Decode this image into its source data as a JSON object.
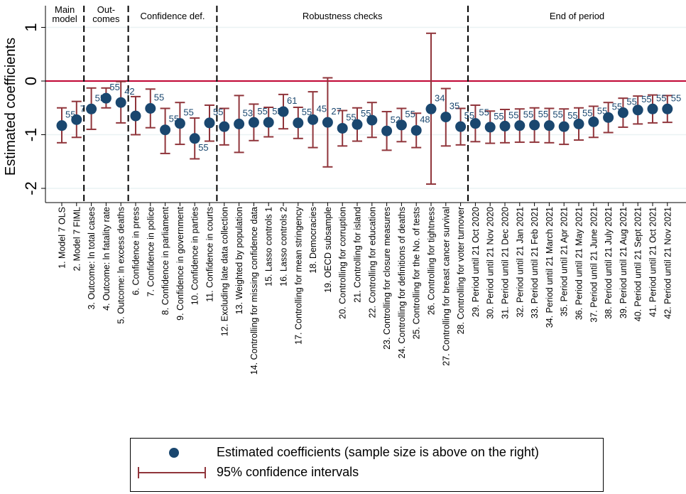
{
  "colors": {
    "point": "#1a476f",
    "ci": "#90353b",
    "zero_line": "#c10534",
    "grid": "#eaf2f3",
    "label": "#1a476f"
  },
  "chart_data": {
    "type": "scatter",
    "ylabel": "Estimated coefficients",
    "ylim": [
      -2.3,
      1.3
    ],
    "yticks": [
      1,
      0,
      -1,
      -2
    ],
    "grid": true,
    "reference_line": 0,
    "sections": [
      {
        "title": "Main\nmodel",
        "start": 1,
        "end": 2
      },
      {
        "title": "Out-\ncomes",
        "start": 3,
        "end": 5
      },
      {
        "title": "Confidence def.",
        "start": 6,
        "end": 11
      },
      {
        "title": "Robustness checks",
        "start": 12,
        "end": 28
      },
      {
        "title": "End of period",
        "start": 29,
        "end": 42
      }
    ],
    "categories": [
      "1. Model 7 OLS",
      "2. Model 7 FIML",
      "3. Outcome: ln total cases",
      "4. Outcome: ln fatality rate",
      "5. Outcome: ln excess deaths",
      "6. Confidence in press",
      "7. Confidence in police",
      "8. Confidence in parliament",
      "9. Confidence in government",
      "10. Confidence in parties",
      "11. Confidence in courts",
      "12. Excluding late data collection",
      "13. Weighted by population",
      "14. Controlling for missing confidence data",
      "15. Lasso controls 1",
      "16. Lasso controls 2",
      "17. Controlling for mean stringency",
      "18. Democracies",
      "19. OECD subsample",
      "20. Controlling for corruption",
      "21. Controlling for island",
      "22. Controlling for education",
      "23. Controlling for closure measures",
      "24. Controlling for definitions of deaths",
      "25. Controlling for the No. of tests",
      "26. Controlling for tightness",
      "27. Controlling for breast cancer survival",
      "28. Controlling for voter turnover",
      "29. Period until 21 Oct 2020",
      "30. Period until 21 Nov 2020",
      "31. Period until 21 Dec 2020",
      "32. Period until 21 Jan 2021",
      "33. Period until 21 Feb 2021",
      "34. Period until 21 March 2021",
      "35. Period until 21 Apr 2021",
      "36. Period until 21 May 2021",
      "37. Period until 21 June 2021",
      "38. Period until 21 July 2021",
      "39. Period until 21 Aug 2021",
      "40. Period until 21 Sept 2021",
      "41. Period until 21 Oct 2021",
      "42. Period until 21 Nov 2021"
    ],
    "estimates": [
      -0.83,
      -0.72,
      -0.52,
      -0.32,
      -0.4,
      -0.65,
      -0.51,
      -0.91,
      -0.79,
      -1.07,
      -0.78,
      -0.85,
      -0.8,
      -0.77,
      -0.77,
      -0.57,
      -0.78,
      -0.72,
      -0.77,
      -0.88,
      -0.81,
      -0.73,
      -0.93,
      -0.82,
      -0.92,
      -0.52,
      -0.67,
      -0.85,
      -0.79,
      -0.86,
      -0.84,
      -0.83,
      -0.82,
      -0.83,
      -0.85,
      -0.8,
      -0.76,
      -0.68,
      -0.59,
      -0.54,
      -0.52,
      -0.52
    ],
    "ci_lower": [
      -1.15,
      -1.05,
      -0.9,
      -0.5,
      -0.78,
      -1.0,
      -0.87,
      -1.35,
      -1.18,
      -1.45,
      -1.12,
      -1.19,
      -1.33,
      -1.11,
      -1.04,
      -0.89,
      -1.07,
      -1.24,
      -1.6,
      -1.21,
      -1.12,
      -1.05,
      -1.29,
      -1.13,
      -1.24,
      -1.92,
      -1.21,
      -1.19,
      -1.13,
      -1.16,
      -1.15,
      -1.14,
      -1.14,
      -1.15,
      -1.18,
      -1.1,
      -1.05,
      -0.96,
      -0.86,
      -0.8,
      -0.78,
      -0.77
    ],
    "ci_upper": [
      -0.5,
      -0.38,
      -0.13,
      -0.13,
      -0.01,
      -0.29,
      -0.15,
      -0.51,
      -0.4,
      -0.69,
      -0.45,
      -0.51,
      -0.27,
      -0.43,
      -0.49,
      -0.25,
      -0.49,
      -0.2,
      0.06,
      -0.55,
      -0.5,
      -0.4,
      -0.57,
      -0.51,
      -0.6,
      0.89,
      -0.14,
      -0.51,
      -0.45,
      -0.56,
      -0.53,
      -0.52,
      -0.5,
      -0.51,
      -0.52,
      -0.5,
      -0.47,
      -0.4,
      -0.32,
      -0.28,
      -0.26,
      -0.27
    ],
    "sample_size_labels": [
      "55",
      "7",
      "55",
      "55",
      "42",
      "",
      "55",
      "55",
      "55",
      "55",
      "55",
      "",
      "53",
      "55",
      "55",
      "61",
      "55",
      "45",
      "27",
      "55",
      "55",
      "",
      "52",
      "55",
      "48",
      "34",
      "35",
      "55",
      "55",
      "55",
      "55",
      "55",
      "55",
      "55",
      "55",
      "55",
      "55",
      "55",
      "55",
      "55",
      "55",
      "55"
    ],
    "sample_size_label_below": [
      false,
      false,
      false,
      false,
      false,
      false,
      false,
      false,
      false,
      true,
      false,
      false,
      false,
      false,
      false,
      false,
      false,
      false,
      false,
      false,
      false,
      false,
      false,
      false,
      false,
      false,
      false,
      false,
      false,
      false,
      false,
      false,
      false,
      false,
      false,
      false,
      false,
      false,
      false,
      false,
      false,
      false
    ]
  },
  "legend": {
    "estimate_label": "Estimated coefficients (sample size is above on the right)",
    "ci_label": "95% confidence intervals"
  }
}
